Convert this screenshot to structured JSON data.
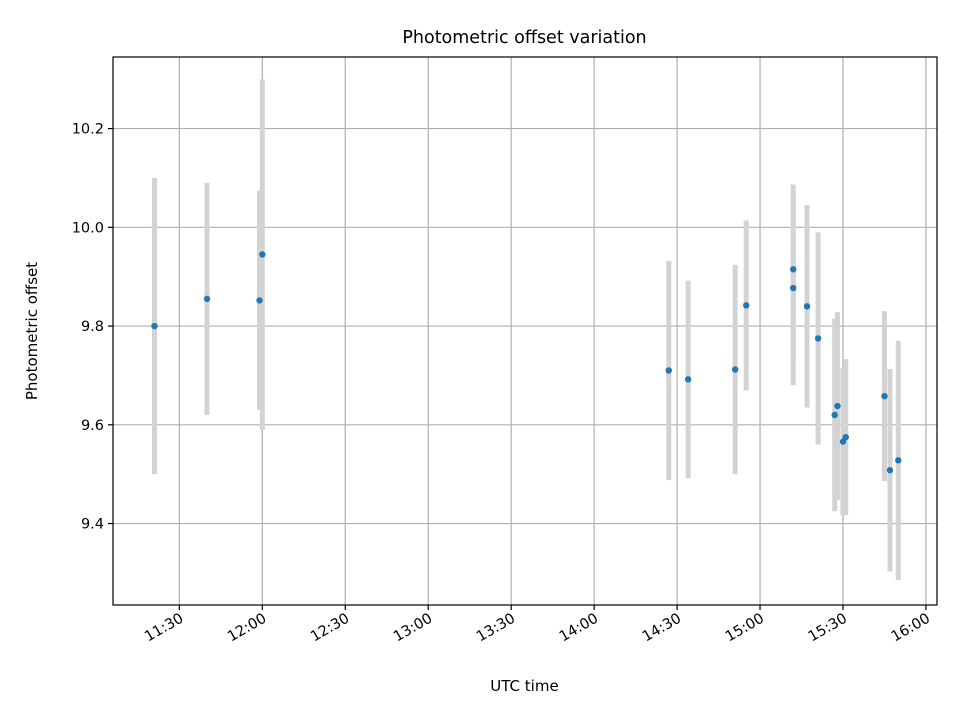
{
  "chart_data": {
    "type": "scatter",
    "title": "Photometric offset variation",
    "xlabel": "UTC time",
    "ylabel": "Photometric offset",
    "x_is_time": true,
    "xlim": [
      "11:06",
      "16:04"
    ],
    "ylim": [
      9.235,
      10.345
    ],
    "x_ticks": [
      "11:30",
      "12:00",
      "12:30",
      "13:00",
      "13:30",
      "14:00",
      "14:30",
      "15:00",
      "15:30",
      "16:00"
    ],
    "y_ticks": [
      "9.4",
      "9.6",
      "9.8",
      "10.0",
      "10.2"
    ],
    "grid": true,
    "marker_color": "#1f77b4",
    "errorbar_color": "#d3d3d3",
    "series": [
      {
        "points": [
          {
            "x": "11:21",
            "y": 9.8,
            "err": 0.3
          },
          {
            "x": "11:40",
            "y": 9.855,
            "err": 0.235
          },
          {
            "x": "11:59",
            "y": 9.852,
            "err": 0.222
          },
          {
            "x": "12:00",
            "y": 9.945,
            "err": 0.355
          },
          {
            "x": "14:27",
            "y": 9.71,
            "err": 0.222
          },
          {
            "x": "14:34",
            "y": 9.692,
            "err": 0.2
          },
          {
            "x": "14:51",
            "y": 9.712,
            "err": 0.212
          },
          {
            "x": "14:55",
            "y": 9.842,
            "err": 0.172
          },
          {
            "x": "15:12",
            "y": 9.915,
            "err": 0.172
          },
          {
            "x": "15:12",
            "y": 9.877,
            "err": 0.197
          },
          {
            "x": "15:17",
            "y": 9.84,
            "err": 0.205
          },
          {
            "x": "15:21",
            "y": 9.775,
            "err": 0.215
          },
          {
            "x": "15:27",
            "y": 9.62,
            "err": 0.195
          },
          {
            "x": "15:28",
            "y": 9.638,
            "err": 0.19
          },
          {
            "x": "15:30",
            "y": 9.566,
            "err": 0.15
          },
          {
            "x": "15:31",
            "y": 9.575,
            "err": 0.158
          },
          {
            "x": "15:45",
            "y": 9.658,
            "err": 0.172
          },
          {
            "x": "15:47",
            "y": 9.508,
            "err": 0.205
          },
          {
            "x": "15:50",
            "y": 9.528,
            "err": 0.242
          }
        ]
      }
    ]
  }
}
